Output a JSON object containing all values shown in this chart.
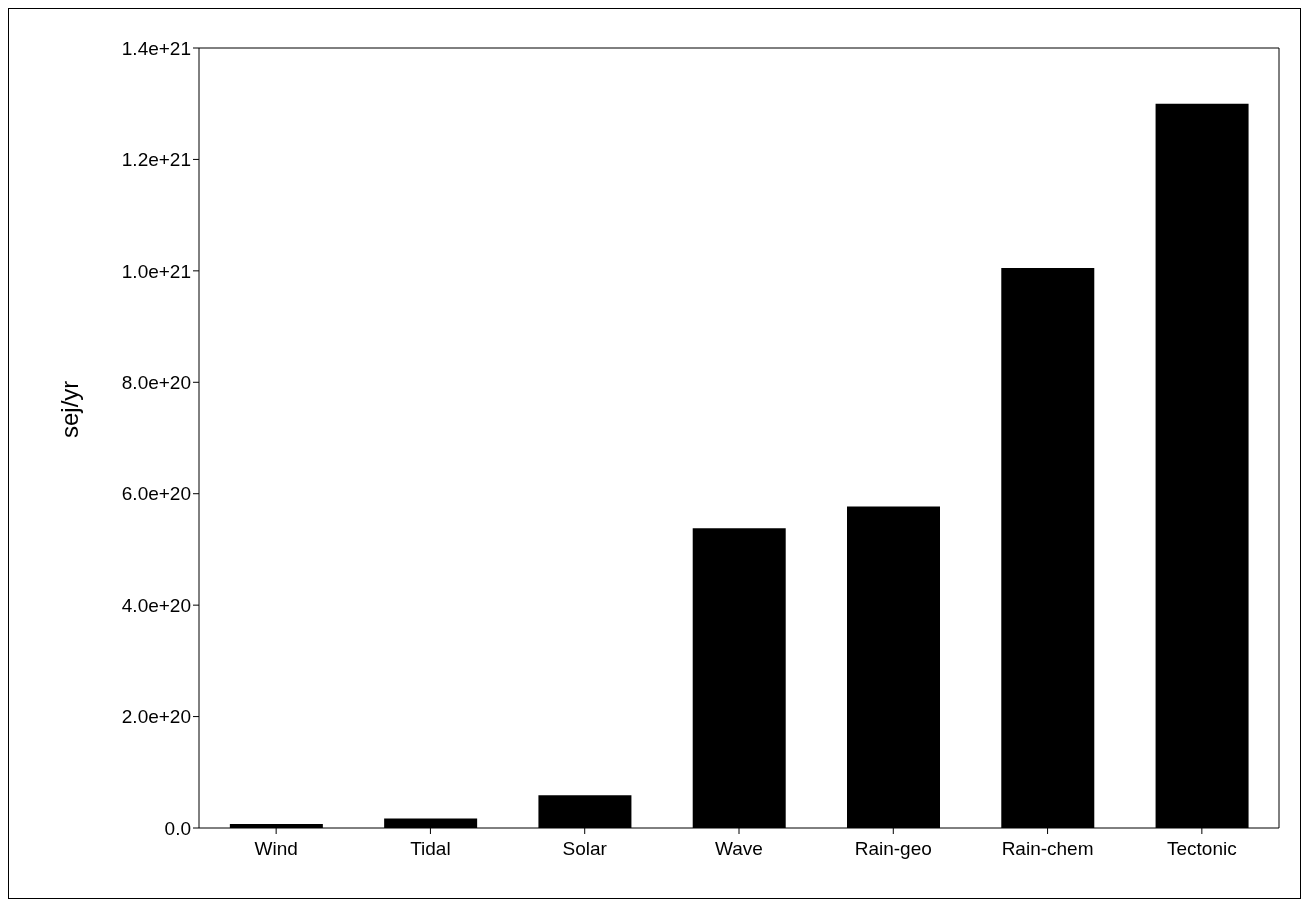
{
  "chart_data": {
    "type": "bar",
    "ylabel": "sej/yr",
    "categories": [
      "Wind",
      "Tidal",
      "Solar",
      "Wave",
      "Rain-geo",
      "Rain-chem",
      "Tectonic"
    ],
    "values": [
      7e+18,
      1.7e+19,
      5.9e+19,
      5.38e+20,
      5.77e+20,
      1.005e+21,
      1.3e+21
    ],
    "color": "#000000",
    "ylim": [
      0,
      1.4e+21
    ],
    "yticks": [
      {
        "value": 0,
        "label": "0.0"
      },
      {
        "value": 2e+20,
        "label": "2.0e+20"
      },
      {
        "value": 4e+20,
        "label": "4.0e+20"
      },
      {
        "value": 6e+20,
        "label": "6.0e+20"
      },
      {
        "value": 8e+20,
        "label": "8.0e+20"
      },
      {
        "value": 1e+21,
        "label": "1.0e+21"
      },
      {
        "value": 1.2e+21,
        "label": "1.2e+21"
      },
      {
        "value": 1.4e+21,
        "label": "1.4e+21"
      }
    ],
    "grid": false
  }
}
